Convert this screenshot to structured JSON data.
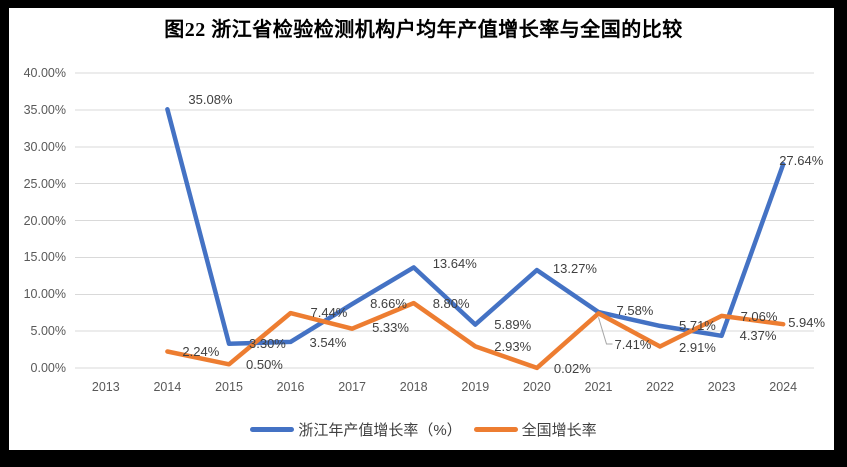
{
  "title": "图22 浙江省检验检测机构户均年产值增长率与全国的比较",
  "colors": {
    "background": "#000000",
    "chart_background": "#FFFFFF",
    "grid": "#D9D9D9",
    "axis_text": "#595959",
    "data_label_text": "#404040",
    "title_text": "#000000",
    "leader_line": "#A6A6A6",
    "series_zhejiang": "#4472C4",
    "series_national": "#ED7D31"
  },
  "chart_data": {
    "type": "line",
    "title": "图22 浙江省检验检测机构户均年产值增长率与全国的比较",
    "categories": [
      "2013",
      "2014",
      "2015",
      "2016",
      "2017",
      "2018",
      "2019",
      "2020",
      "2021",
      "2022",
      "2023",
      "2024"
    ],
    "y_ticks": [
      "0.00%",
      "5.00%",
      "10.00%",
      "15.00%",
      "20.00%",
      "25.00%",
      "30.00%",
      "35.00%",
      "40.00%"
    ],
    "ylim": [
      0,
      40
    ],
    "y_tick_step": 5,
    "grid": true,
    "legend_position": "bottom",
    "series": [
      {
        "name": "浙江年产值增长率（%）",
        "color": "#4472C4",
        "values": [
          null,
          35.08,
          3.3,
          3.54,
          8.66,
          13.64,
          5.89,
          13.27,
          7.58,
          5.71,
          4.37,
          27.64
        ],
        "labels": [
          null,
          "35.08%",
          "3.30%",
          "3.54%",
          "8.66%",
          "13.64%",
          "5.89%",
          "13.27%",
          "7.58%",
          "5.71%",
          "4.37%",
          "27.64%"
        ]
      },
      {
        "name": "全国增长率",
        "color": "#ED7D31",
        "values": [
          null,
          2.24,
          0.5,
          7.44,
          5.33,
          8.8,
          2.93,
          0.02,
          7.41,
          2.91,
          7.06,
          5.94
        ],
        "labels": [
          null,
          "2.24%",
          "0.50%",
          "7.44%",
          "5.33%",
          "8.80%",
          "2.93%",
          "0.02%",
          "7.41%",
          "2.91%",
          "7.06%",
          "5.94%"
        ]
      }
    ],
    "leader_label": {
      "series": "全国增长率",
      "category": "2021",
      "label": "7.41%"
    }
  }
}
